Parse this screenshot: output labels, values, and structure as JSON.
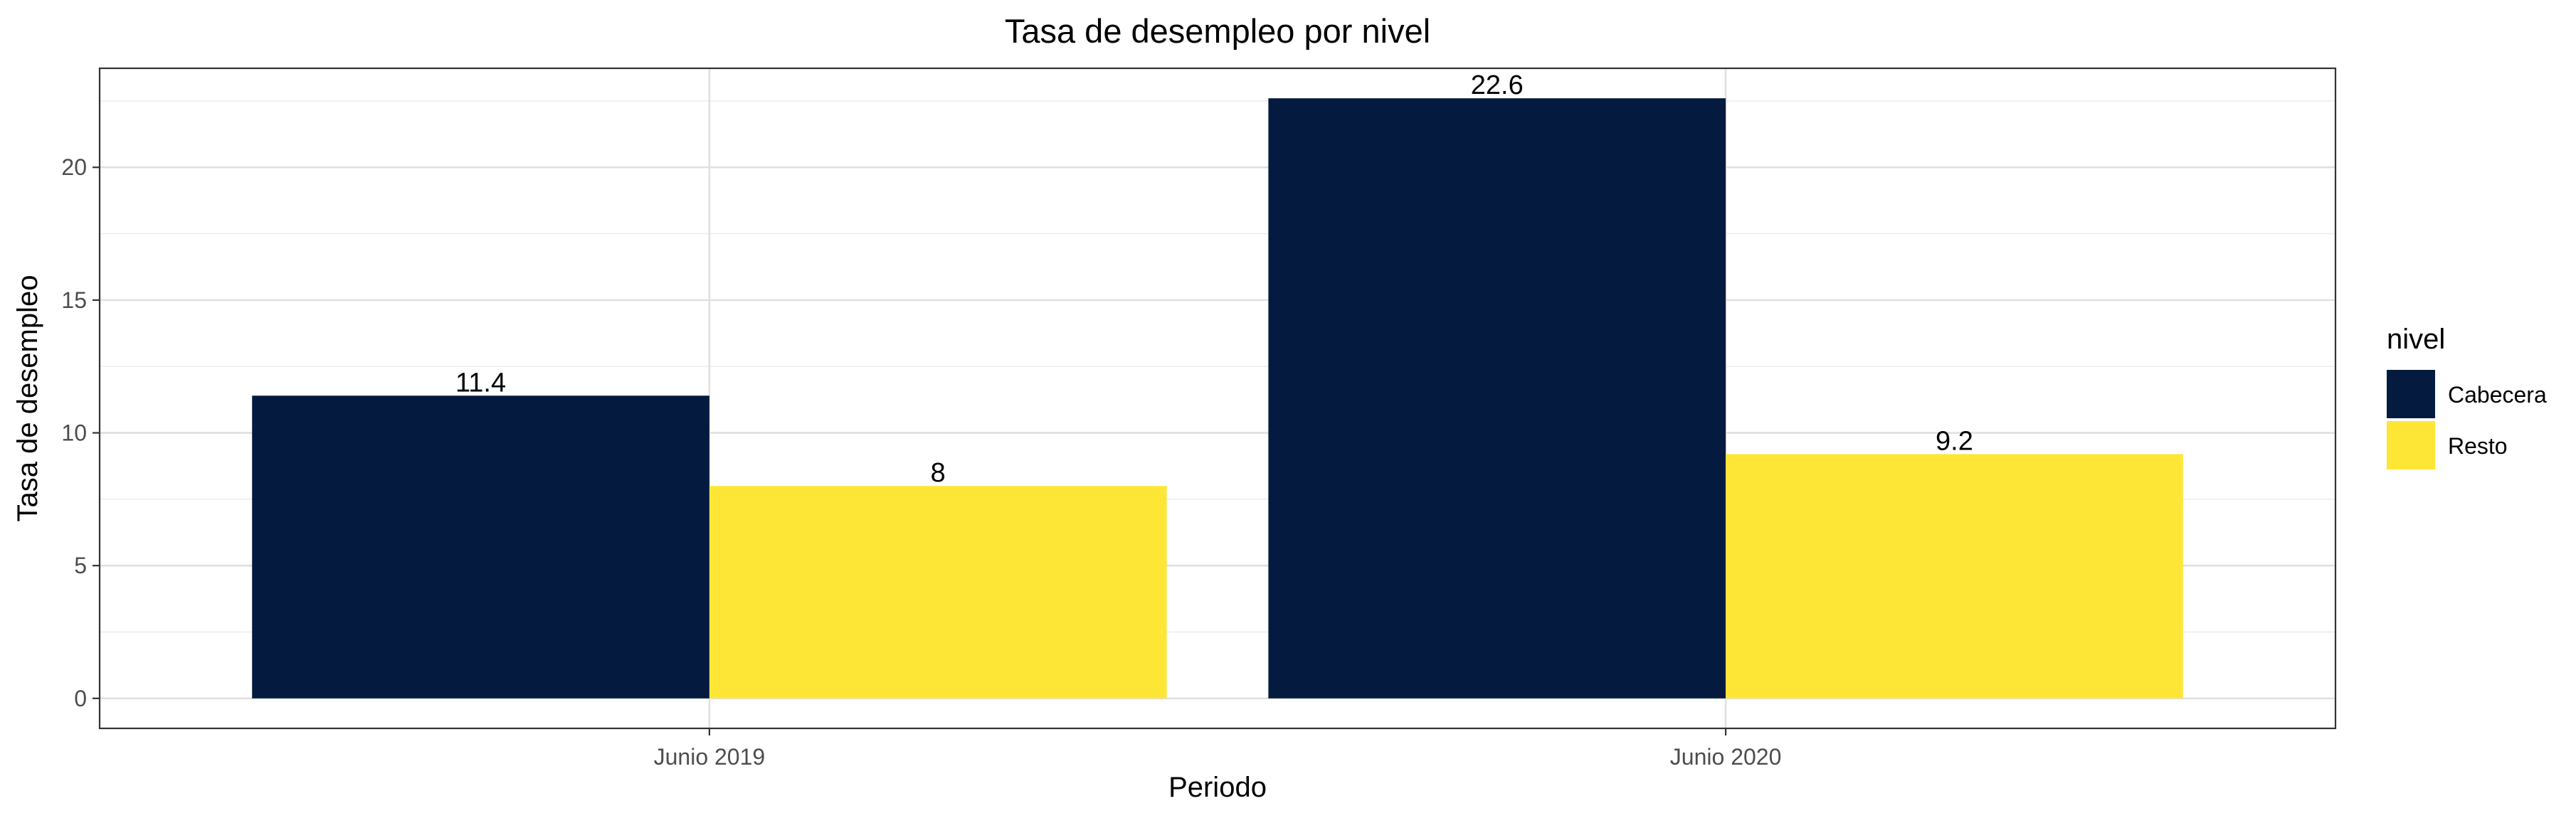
{
  "chart_data": {
    "type": "bar",
    "title": "Tasa de desempleo por nivel",
    "xlabel": "Periodo",
    "ylabel": "Tasa de desempleo",
    "categories": [
      "Junio 2019",
      "Junio 2020"
    ],
    "series": [
      {
        "name": "Cabecera",
        "values": [
          11.4,
          22.6
        ],
        "labels": [
          "11.4",
          "22.6"
        ],
        "color": "#041a3f"
      },
      {
        "name": "Resto",
        "values": [
          8,
          9.2
        ],
        "labels": [
          "8",
          "9.2"
        ],
        "color": "#fde636"
      }
    ],
    "ylim": [
      -1.13,
      23.73
    ],
    "yticks": [
      0,
      5,
      10,
      15,
      20
    ],
    "ytick_labels": [
      "0",
      "5",
      "10",
      "15",
      "20"
    ],
    "grid": true,
    "legend": {
      "title": "nivel",
      "position": "right"
    }
  }
}
